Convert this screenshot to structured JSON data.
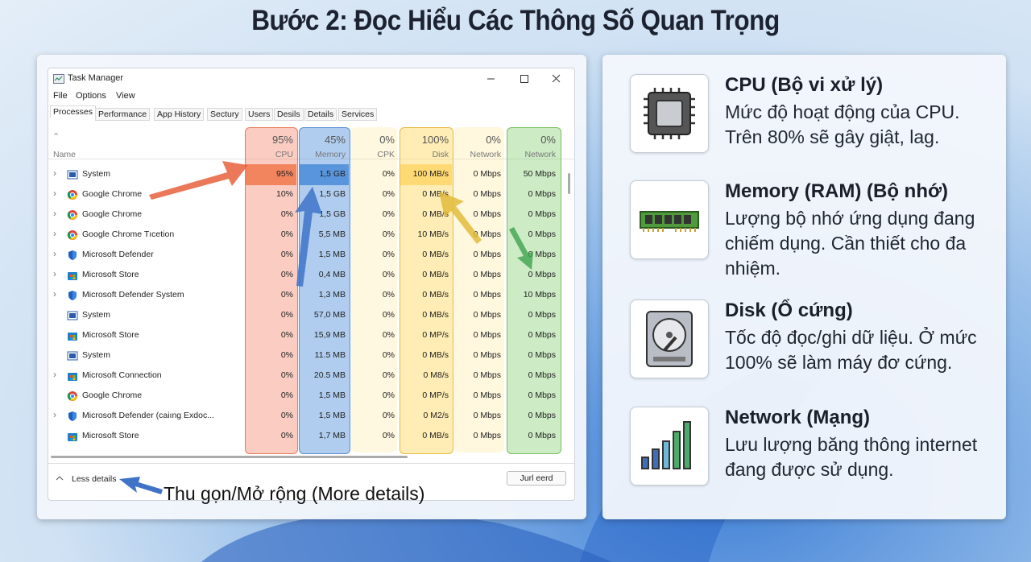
{
  "title": "Bước 2: Đọc Hiểu Các Thông Số Quan Trọng",
  "task_manager": {
    "window_title": "Task Manager",
    "menu": [
      "File",
      "Options",
      "View"
    ],
    "tabs": [
      "Processes",
      "Performance",
      "App History",
      "Sectury",
      "Users",
      "Desils",
      "Details",
      "Services"
    ],
    "name_header": "Name",
    "columns": [
      {
        "value": "95%",
        "label": "CPU"
      },
      {
        "value": "45%",
        "label": "Memory"
      },
      {
        "value": "0%",
        "label": "CPK"
      },
      {
        "value": "100%",
        "label": "Disk"
      },
      {
        "value": "0%",
        "label": "Network"
      },
      {
        "value": "0%",
        "label": "Network"
      }
    ],
    "rows": [
      [
        "System",
        "95%",
        "1,5 GB",
        "0%",
        "100 MB/s",
        "0 Mbps",
        "50 Mbps"
      ],
      [
        "Google Chrome",
        "10%",
        "1,5 GB",
        "0%",
        "0 MB/s",
        "0 Mbps",
        "0 Mbps"
      ],
      [
        "Google Chrome",
        "0%",
        "1,5 GB",
        "0%",
        "0 MB/s",
        "0 Mbps",
        "0 Mbps"
      ],
      [
        "Google Chrome Tıcetion",
        "0%",
        "5,5 MB",
        "0%",
        "10 MB/s",
        "0 Mbps",
        "0 Mbps"
      ],
      [
        "Microsoft Defender",
        "0%",
        "1,5 MB",
        "0%",
        "0 MB/s",
        "0 Mbps",
        "0 Mbps"
      ],
      [
        "Microsoft Store",
        "0%",
        "0,4 MB",
        "0%",
        "0 MB/s",
        "0 Mbps",
        "0 Mbps"
      ],
      [
        "Microsoft Defender System",
        "0%",
        "1,3 MB",
        "0%",
        "0 MB/s",
        "0 Mbps",
        "10 Mbps"
      ],
      [
        "System",
        "0%",
        "57,0 MB",
        "0%",
        "0 MB/s",
        "0 Mbps",
        "0 Mbps"
      ],
      [
        "Microsoft Store",
        "0%",
        "15,9 MB",
        "0%",
        "0 MP/s",
        "0 Mbps",
        "0 Mbps"
      ],
      [
        "System",
        "0%",
        "11.5 MB",
        "0%",
        "0 MB/s",
        "0 Mbps",
        "0 Mbps"
      ],
      [
        "Microsoft Connection",
        "0%",
        "20.5 MB",
        "0%",
        "0 M8/s",
        "0 Mbps",
        "0 Mbps"
      ],
      [
        "Google Chrome",
        "0%",
        "1,5 MB",
        "0%",
        "0 MP/s",
        "0 Mbps",
        "0 Mbps"
      ],
      [
        "Microsoft Defender (caiıng Exdoc...",
        "0%",
        "1,5 MB",
        "0%",
        "0 M2/s",
        "0 Mbps",
        "0 Mbps"
      ],
      [
        "Microsoft Store",
        "0%",
        "1,7 MB",
        "0%",
        "0 MB/s",
        "0 Mbps",
        "0 Mbps"
      ]
    ],
    "footer": {
      "less_details": "Less details",
      "button": "Jurl eerd"
    }
  },
  "annotation": "Thu gọn/Mở rộng (More details)",
  "cards": [
    {
      "title": "CPU (Bộ vi xử lý)",
      "description": "Mức độ hoạt động của CPU. Trên 80% sẽ gây giật, lag."
    },
    {
      "title": "Memory (RAM) (Bộ nhớ)",
      "description": "Lượng bộ nhớ ứng dụng đang chiếm dụng. Cần thiết cho đa nhiệm."
    },
    {
      "title": "Disk (Ổ cứng)",
      "description": "Tốc độ đọc/ghi dữ liệu. Ở mức 100% sẽ làm máy đơ cứng."
    },
    {
      "title": "Network (Mạng)",
      "description": "Lưu lượng băng thông internet đang được sử dụng."
    }
  ]
}
